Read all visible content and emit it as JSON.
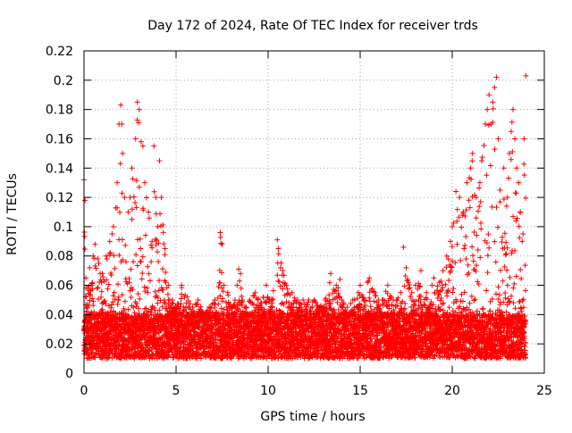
{
  "chart_data": {
    "type": "scatter",
    "title": "Day 172 of 2024, Rate Of TEC Index for receiver trds",
    "xlabel": "GPS time / hours",
    "ylabel": "ROTI / TECUs",
    "xlim": [
      0,
      25
    ],
    "ylim": [
      0,
      0.22
    ],
    "x_ticks": [
      0,
      5,
      10,
      15,
      20,
      25
    ],
    "x_tick_labels": [
      "0",
      "5",
      "10",
      "15",
      "20",
      "25"
    ],
    "y_ticks": [
      0,
      0.02,
      0.04,
      0.06,
      0.08,
      0.1,
      0.12,
      0.14,
      0.16,
      0.18,
      0.2,
      0.22
    ],
    "y_tick_labels": [
      "0",
      "0.02",
      "0.04",
      "0.06",
      "0.08",
      "0.1",
      "0.12",
      "0.14",
      "0.16",
      "0.18",
      "0.2",
      "0.22"
    ],
    "grid": true,
    "marker": "+",
    "series": [
      {
        "name": "ROTI",
        "color": "#ff0000",
        "x": [
          0.0,
          0.05,
          0.1,
          0.2,
          0.3,
          0.4,
          0.5,
          0.6,
          0.8,
          1.0,
          1.2,
          1.4,
          1.6,
          1.8,
          1.9,
          2.0,
          2.05,
          2.1,
          2.2,
          2.4,
          2.5,
          2.6,
          2.8,
          2.9,
          3.0,
          3.1,
          3.2,
          3.3,
          3.5,
          3.7,
          3.8,
          3.9,
          4.0,
          4.1,
          4.2,
          4.4,
          4.6,
          4.8,
          5.0,
          5.3,
          5.6,
          5.9,
          6.2,
          6.5,
          6.8,
          7.1,
          7.4,
          7.5,
          7.6,
          7.8,
          8.0,
          8.2,
          8.4,
          8.5,
          8.6,
          8.8,
          9.0,
          9.3,
          9.6,
          9.9,
          10.2,
          10.5,
          10.55,
          10.8,
          11.0,
          11.3,
          11.6,
          11.9,
          12.2,
          12.5,
          12.8,
          13.1,
          13.4,
          13.7,
          13.9,
          14.0,
          14.3,
          14.6,
          14.9,
          15.0,
          15.2,
          15.4,
          15.5,
          15.8,
          16.0,
          16.2,
          16.5,
          16.8,
          17.0,
          17.2,
          17.35,
          17.5,
          17.8,
          18.0,
          18.3,
          18.6,
          18.9,
          19.0,
          19.3,
          19.5,
          19.7,
          19.9,
          20.0,
          20.2,
          20.4,
          20.6,
          20.8,
          21.0,
          21.1,
          21.3,
          21.5,
          21.6,
          21.8,
          21.9,
          22.0,
          22.1,
          22.2,
          22.3,
          22.4,
          22.5,
          22.6,
          22.8,
          23.0,
          23.1,
          23.2,
          23.3,
          23.4,
          23.5,
          23.6,
          23.7,
          23.8,
          23.9,
          24.0
        ],
        "y": [
          0.132,
          0.118,
          0.065,
          0.058,
          0.072,
          0.06,
          0.08,
          0.088,
          0.075,
          0.068,
          0.08,
          0.09,
          0.1,
          0.13,
          0.17,
          0.183,
          0.17,
          0.15,
          0.12,
          0.11,
          0.12,
          0.14,
          0.16,
          0.185,
          0.18,
          0.158,
          0.155,
          0.13,
          0.11,
          0.09,
          0.155,
          0.12,
          0.1,
          0.145,
          0.12,
          0.085,
          0.06,
          0.05,
          0.045,
          0.06,
          0.052,
          0.045,
          0.05,
          0.04,
          0.045,
          0.05,
          0.096,
          0.088,
          0.06,
          0.055,
          0.045,
          0.05,
          0.071,
          0.068,
          0.05,
          0.045,
          0.05,
          0.055,
          0.048,
          0.06,
          0.05,
          0.091,
          0.085,
          0.07,
          0.06,
          0.055,
          0.05,
          0.05,
          0.05,
          0.05,
          0.045,
          0.05,
          0.068,
          0.06,
          0.064,
          0.05,
          0.045,
          0.05,
          0.055,
          0.06,
          0.05,
          0.062,
          0.065,
          0.055,
          0.05,
          0.05,
          0.06,
          0.05,
          0.05,
          0.055,
          0.086,
          0.072,
          0.055,
          0.06,
          0.07,
          0.055,
          0.06,
          0.065,
          0.062,
          0.07,
          0.08,
          0.09,
          0.1,
          0.124,
          0.12,
          0.11,
          0.13,
          0.14,
          0.15,
          0.12,
          0.13,
          0.145,
          0.17,
          0.18,
          0.19,
          0.17,
          0.185,
          0.195,
          0.202,
          0.16,
          0.125,
          0.14,
          0.12,
          0.15,
          0.165,
          0.18,
          0.16,
          0.14,
          0.13,
          0.11,
          0.09,
          0.16,
          0.203
        ]
      }
    ],
    "baseline_band": {
      "low": 0.01,
      "high": 0.04
    }
  }
}
